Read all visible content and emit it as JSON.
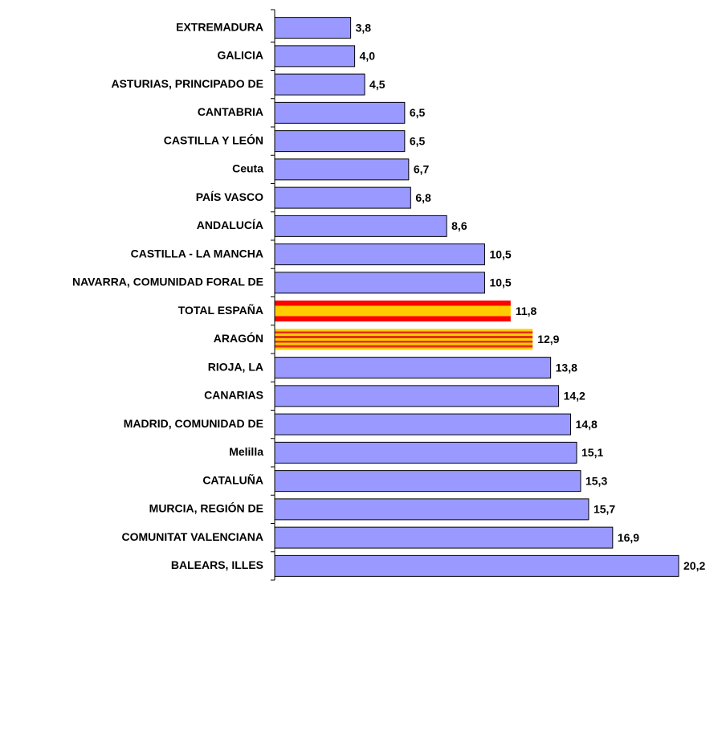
{
  "chart_data": {
    "type": "hbar",
    "categories": [
      "EXTREMADURA",
      "GALICIA",
      "ASTURIAS, PRINCIPADO DE",
      "CANTABRIA",
      "CASTILLA Y LEÓN",
      "Ceuta",
      "PAÍS VASCO",
      "ANDALUCÍA",
      "CASTILLA - LA MANCHA",
      "NAVARRA, COMUNIDAD FORAL DE",
      "TOTAL ESPAÑA",
      "ARAGÓN",
      "RIOJA, LA",
      "CANARIAS",
      "MADRID, COMUNIDAD DE",
      "Melilla",
      "CATALUÑA",
      "MURCIA, REGIÓN DE",
      "COMUNITAT VALENCIANA",
      "BALEARS, ILLES"
    ],
    "values": [
      3.8,
      4.0,
      4.5,
      6.5,
      6.5,
      6.7,
      6.8,
      8.6,
      10.5,
      10.5,
      11.8,
      12.9,
      13.8,
      14.2,
      14.8,
      15.1,
      15.3,
      15.7,
      16.9,
      20.2
    ],
    "value_labels": [
      "3,8",
      "4,0",
      "4,5",
      "6,5",
      "6,5",
      "6,7",
      "6,8",
      "8,6",
      "10,5",
      "10,5",
      "11,8",
      "12,9",
      "13,8",
      "14,2",
      "14,8",
      "15,1",
      "15,3",
      "15,7",
      "16,9",
      "20,2"
    ],
    "colors": [
      "#9999ff",
      "#9999ff",
      "#9999ff",
      "#9999ff",
      "#9999ff",
      "#9999ff",
      "#9999ff",
      "#9999ff",
      "#9999ff",
      "#9999ff",
      [
        "#ff0000",
        "#ffcc00",
        "#ffcc00",
        "#ff0000"
      ],
      [
        "#ffcc00",
        "#e03020",
        "#ffcc00",
        "#e03020",
        "#ffcc00",
        "#e03020",
        "#ffcc00",
        "#e03020",
        "#ffcc00"
      ],
      "#9999ff",
      "#9999ff",
      "#9999ff",
      "#9999ff",
      "#9999ff",
      "#9999ff",
      "#9999ff",
      "#9999ff"
    ]
  }
}
